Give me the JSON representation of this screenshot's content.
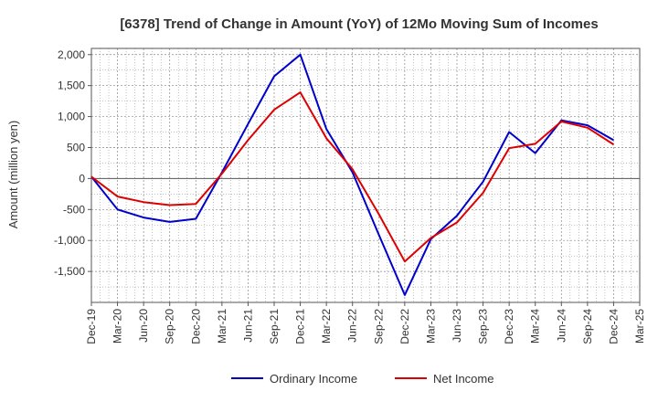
{
  "chart_data": {
    "type": "line",
    "title": "[6378]  Trend of Change in Amount (YoY) of 12Mo Moving Sum of Incomes",
    "ylabel": "Amount (million yen)",
    "xlabel": "",
    "ylim": [
      -2000,
      2100
    ],
    "yticks": [
      2000,
      1500,
      1000,
      500,
      0,
      -500,
      -1000,
      -1500
    ],
    "ytick_labels": [
      "2,000",
      "1,500",
      "1,000",
      "500",
      "0",
      "-500",
      "-1,000",
      "-1,500"
    ],
    "categories": [
      "Dec-19",
      "Mar-20",
      "Jun-20",
      "Sep-20",
      "Dec-20",
      "Mar-21",
      "Jun-21",
      "Sep-21",
      "Dec-21",
      "Mar-22",
      "Jun-22",
      "Sep-22",
      "Dec-22",
      "Mar-23",
      "Jun-23",
      "Sep-23",
      "Dec-23",
      "Mar-24",
      "Jun-24",
      "Sep-24",
      "Dec-24",
      "Mar-25"
    ],
    "grid": true,
    "legend_position": "bottom",
    "series": [
      {
        "name": "Ordinary Income",
        "color": "#0000cc",
        "values": [
          30,
          -500,
          -630,
          -700,
          -650,
          100,
          880,
          1650,
          2000,
          800,
          100,
          -900,
          -1880,
          -980,
          -600,
          -50,
          750,
          410,
          940,
          860,
          620,
          null
        ]
      },
      {
        "name": "Net Income",
        "color": "#dd0000",
        "values": [
          30,
          -290,
          -380,
          -430,
          -410,
          80,
          620,
          1110,
          1390,
          650,
          150,
          -570,
          -1340,
          -960,
          -710,
          -230,
          490,
          560,
          920,
          820,
          550,
          null
        ]
      }
    ]
  }
}
